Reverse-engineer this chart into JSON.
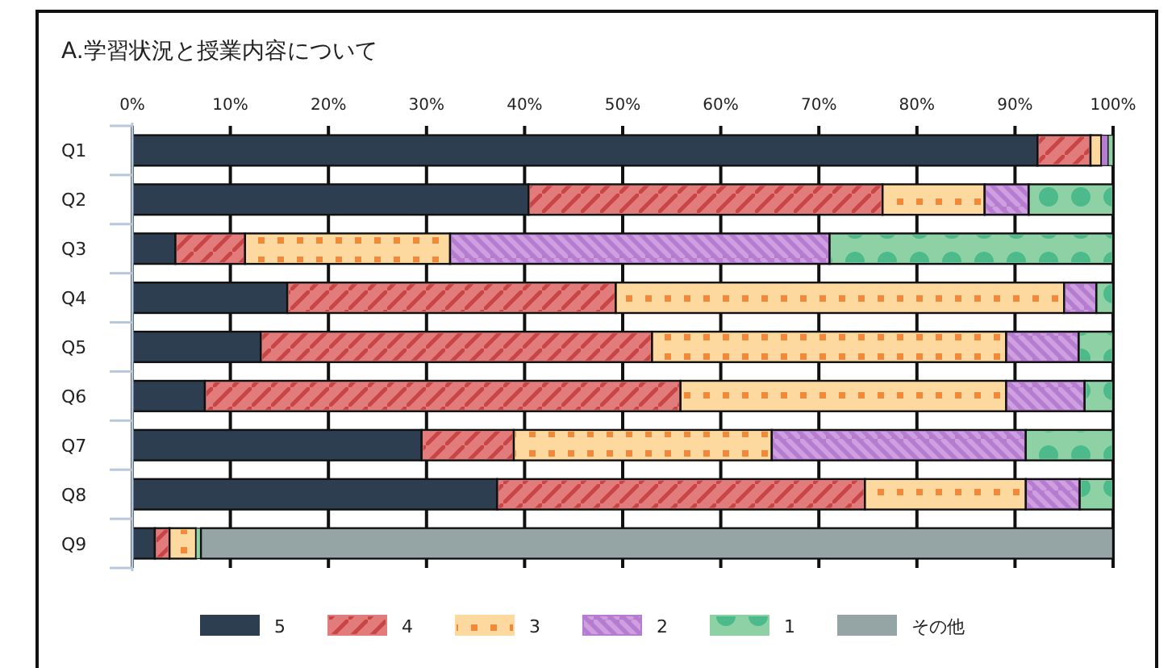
{
  "chart_data": {
    "type": "bar",
    "orientation": "horizontal",
    "stacked": true,
    "title": "A.学習状況と授業内容について",
    "categories": [
      "Q1",
      "Q2",
      "Q3",
      "Q4",
      "Q5",
      "Q6",
      "Q7",
      "Q8",
      "Q9"
    ],
    "series": [
      {
        "name": "5",
        "color": "#2c3e50",
        "values": [
          92.3,
          40.4,
          4.4,
          15.8,
          13.1,
          7.4,
          29.5,
          37.2,
          2.3
        ]
      },
      {
        "name": "4",
        "color": "#e27c7c",
        "values": [
          5.4,
          36.1,
          7.1,
          33.5,
          39.9,
          48.5,
          9.4,
          37.5,
          1.5
        ]
      },
      {
        "name": "3",
        "color": "#fdd9a0",
        "values": [
          1.1,
          10.4,
          20.9,
          45.7,
          36.1,
          33.2,
          26.3,
          16.4,
          2.7
        ]
      },
      {
        "name": "2",
        "color": "#b57cd0",
        "values": [
          0.7,
          4.5,
          38.7,
          3.3,
          7.4,
          8.0,
          25.9,
          5.5,
          0
        ]
      },
      {
        "name": "1",
        "color": "#8ed1a5",
        "values": [
          0.5,
          8.6,
          28.9,
          1.7,
          3.5,
          2.9,
          8.9,
          3.4,
          0.5
        ]
      },
      {
        "name": "その他",
        "color": "#95a5a6",
        "values": [
          0,
          0,
          0,
          0,
          0,
          0,
          0,
          0,
          93.0
        ]
      }
    ],
    "xlim": [
      0,
      100
    ],
    "xticks": [
      {
        "value": 0,
        "label": "0%"
      },
      {
        "value": 10,
        "label": "10%"
      },
      {
        "value": 20,
        "label": "20%"
      },
      {
        "value": 30,
        "label": "30%"
      },
      {
        "value": 40,
        "label": "40%"
      },
      {
        "value": 50,
        "label": "50%"
      },
      {
        "value": 60,
        "label": "60%"
      },
      {
        "value": 70,
        "label": "70%"
      },
      {
        "value": 80,
        "label": "80%"
      },
      {
        "value": 90,
        "label": "90%"
      },
      {
        "value": 100,
        "label": "100%"
      }
    ],
    "grid": "x",
    "legend": "bottom"
  }
}
